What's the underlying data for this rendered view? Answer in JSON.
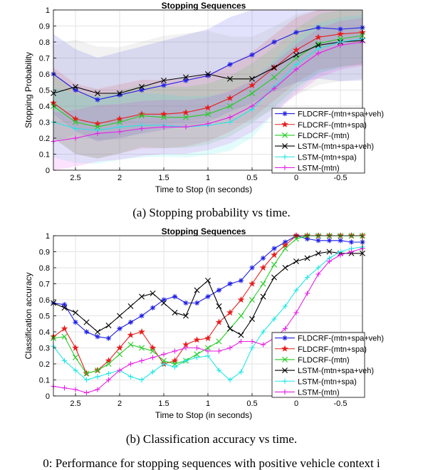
{
  "figure_caption": "0: Performance for stopping sequences with positive vehicle context i",
  "colors": {
    "fldcrf_all": "#1f1fe6",
    "fldcrf_spa": "#e61f1f",
    "fldcrf_mtn": "#22cc22",
    "lstm_all": "#000000",
    "lstm_spa": "#22e6e6",
    "lstm_mtn": "#e61fe6"
  },
  "chart_data": [
    {
      "type": "line",
      "title": "Stopping Sequences",
      "caption": "(a) Stopping probability vs time.",
      "xlabel": "Time to Stop (in seconds)",
      "ylabel": "Stopping Probability",
      "xlim": [
        2.75,
        -0.75
      ],
      "ylim": [
        0,
        1
      ],
      "xticks": [
        "2.5",
        "2",
        "1.5",
        "1",
        "0.5",
        "0",
        "-0.5"
      ],
      "yticks": [
        "0",
        "0.1",
        "0.2",
        "0.3",
        "0.4",
        "0.5",
        "0.6",
        "0.7",
        "0.8",
        "0.9",
        "1"
      ],
      "grid": true,
      "legend": "lower-right",
      "x": [
        2.75,
        2.5,
        2.25,
        2.0,
        1.75,
        1.5,
        1.25,
        1.0,
        0.75,
        0.5,
        0.25,
        0.0,
        -0.25,
        -0.5,
        -0.75
      ],
      "series": [
        {
          "name": "FLDCRF-(mtn+spa+veh)",
          "color_key": "fldcrf_all",
          "marker": "asterisk",
          "values": [
            0.6,
            0.5,
            0.44,
            0.47,
            0.5,
            0.53,
            0.56,
            0.59,
            0.66,
            0.72,
            0.8,
            0.86,
            0.89,
            0.88,
            0.89
          ],
          "band": [
            0.25,
            0.33
          ]
        },
        {
          "name": "FLDCRF-(mtn+spa)",
          "color_key": "fldcrf_spa",
          "marker": "star",
          "values": [
            0.42,
            0.32,
            0.29,
            0.32,
            0.35,
            0.35,
            0.36,
            0.39,
            0.45,
            0.53,
            0.64,
            0.75,
            0.83,
            0.85,
            0.86
          ],
          "band": [
            0.22,
            0.2
          ]
        },
        {
          "name": "FLDCRF-(mtn)",
          "color_key": "fldcrf_mtn",
          "marker": "x",
          "values": [
            0.4,
            0.3,
            0.27,
            0.3,
            0.34,
            0.33,
            0.33,
            0.35,
            0.4,
            0.48,
            0.58,
            0.7,
            0.79,
            0.82,
            0.84
          ],
          "band": [
            0.2,
            0.18
          ]
        },
        {
          "name": "LSTM-(mtn+spa+veh)",
          "color_key": "lstm_all",
          "marker": "x",
          "values": [
            0.48,
            0.52,
            0.48,
            0.48,
            0.52,
            0.56,
            0.58,
            0.6,
            0.57,
            0.57,
            0.64,
            0.72,
            0.78,
            0.8,
            0.81
          ],
          "band": [
            0.3,
            0.24
          ]
        },
        {
          "name": "LSTM-(mtn+spa)",
          "color_key": "lstm_spa",
          "marker": "plus",
          "values": [
            0.3,
            0.26,
            0.25,
            0.27,
            0.28,
            0.28,
            0.27,
            0.28,
            0.3,
            0.38,
            0.52,
            0.66,
            0.76,
            0.8,
            0.82
          ],
          "band": [
            0.22,
            0.15
          ]
        },
        {
          "name": "LSTM-(mtn)",
          "color_key": "lstm_mtn",
          "marker": "plus",
          "values": [
            0.18,
            0.2,
            0.23,
            0.24,
            0.26,
            0.27,
            0.27,
            0.29,
            0.33,
            0.4,
            0.51,
            0.63,
            0.73,
            0.78,
            0.8
          ],
          "band": [
            0.18,
            0.15
          ]
        }
      ]
    },
    {
      "type": "line",
      "title": "Stopping Sequences",
      "caption": "(b) Classification accuracy vs time.",
      "xlabel": "Time to Stop (in seconds)",
      "ylabel": "Classification accuracy",
      "xlim": [
        2.75,
        -0.75
      ],
      "ylim": [
        0,
        1
      ],
      "xticks": [
        "2.5",
        "2",
        "1.5",
        "1",
        "0.5",
        "0",
        "-0.5"
      ],
      "yticks": [
        "0",
        "0.1",
        "0.2",
        "0.3",
        "0.4",
        "0.5",
        "0.6",
        "0.7",
        "0.8",
        "0.9",
        "1"
      ],
      "grid": true,
      "legend": "lower-right",
      "x": [
        2.75,
        2.625,
        2.5,
        2.375,
        2.25,
        2.125,
        2.0,
        1.875,
        1.75,
        1.625,
        1.5,
        1.375,
        1.25,
        1.125,
        1.0,
        0.875,
        0.75,
        0.625,
        0.5,
        0.375,
        0.25,
        0.125,
        0.0,
        -0.125,
        -0.25,
        -0.375,
        -0.5,
        -0.625,
        -0.75
      ],
      "series": [
        {
          "name": "FLDCRF-(mtn+spa+veh)",
          "color_key": "fldcrf_all",
          "marker": "asterisk",
          "values": [
            0.58,
            0.57,
            0.46,
            0.4,
            0.37,
            0.36,
            0.42,
            0.46,
            0.5,
            0.55,
            0.6,
            0.62,
            0.58,
            0.58,
            0.62,
            0.66,
            0.7,
            0.72,
            0.8,
            0.86,
            0.92,
            0.96,
            1.0,
            0.98,
            0.97,
            0.97,
            0.97,
            0.96,
            0.96
          ]
        },
        {
          "name": "FLDCRF-(mtn+spa)",
          "color_key": "fldcrf_spa",
          "marker": "star",
          "values": [
            0.37,
            0.42,
            0.3,
            0.14,
            0.16,
            0.22,
            0.3,
            0.38,
            0.4,
            0.3,
            0.2,
            0.22,
            0.32,
            0.35,
            0.36,
            0.46,
            0.52,
            0.6,
            0.7,
            0.8,
            0.88,
            0.94,
            1.0,
            1.0,
            1.0,
            1.0,
            1.0,
            1.0,
            1.0
          ]
        },
        {
          "name": "FLDCRF-(mtn)",
          "color_key": "fldcrf_mtn",
          "marker": "x",
          "values": [
            0.36,
            0.37,
            0.24,
            0.14,
            0.16,
            0.2,
            0.26,
            0.32,
            0.3,
            0.28,
            0.22,
            0.2,
            0.22,
            0.26,
            0.3,
            0.34,
            0.42,
            0.5,
            0.6,
            0.7,
            0.82,
            0.92,
            0.98,
            1.0,
            1.0,
            1.0,
            1.0,
            1.0,
            1.0
          ]
        },
        {
          "name": "LSTM-(mtn+spa+veh)",
          "color_key": "lstm_all",
          "marker": "x",
          "values": [
            0.58,
            0.55,
            0.52,
            0.46,
            0.4,
            0.44,
            0.5,
            0.56,
            0.62,
            0.64,
            0.58,
            0.52,
            0.5,
            0.66,
            0.72,
            0.56,
            0.42,
            0.38,
            0.48,
            0.62,
            0.74,
            0.8,
            0.84,
            0.86,
            0.89,
            0.9,
            0.89,
            0.89,
            0.89
          ]
        },
        {
          "name": "LSTM-(mtn+spa)",
          "color_key": "lstm_spa",
          "marker": "plus",
          "values": [
            0.31,
            0.22,
            0.16,
            0.1,
            0.12,
            0.14,
            0.16,
            0.12,
            0.1,
            0.15,
            0.2,
            0.18,
            0.22,
            0.24,
            0.25,
            0.16,
            0.1,
            0.15,
            0.3,
            0.4,
            0.48,
            0.56,
            0.66,
            0.74,
            0.8,
            0.86,
            0.9,
            0.92,
            0.93
          ]
        },
        {
          "name": "LSTM-(mtn)",
          "color_key": "lstm_mtn",
          "marker": "plus",
          "values": [
            0.06,
            0.05,
            0.04,
            0.02,
            0.04,
            0.1,
            0.16,
            0.2,
            0.22,
            0.24,
            0.26,
            0.28,
            0.3,
            0.3,
            0.28,
            0.28,
            0.3,
            0.34,
            0.34,
            0.32,
            0.36,
            0.42,
            0.52,
            0.64,
            0.76,
            0.84,
            0.88,
            0.9,
            0.92
          ]
        }
      ]
    }
  ]
}
